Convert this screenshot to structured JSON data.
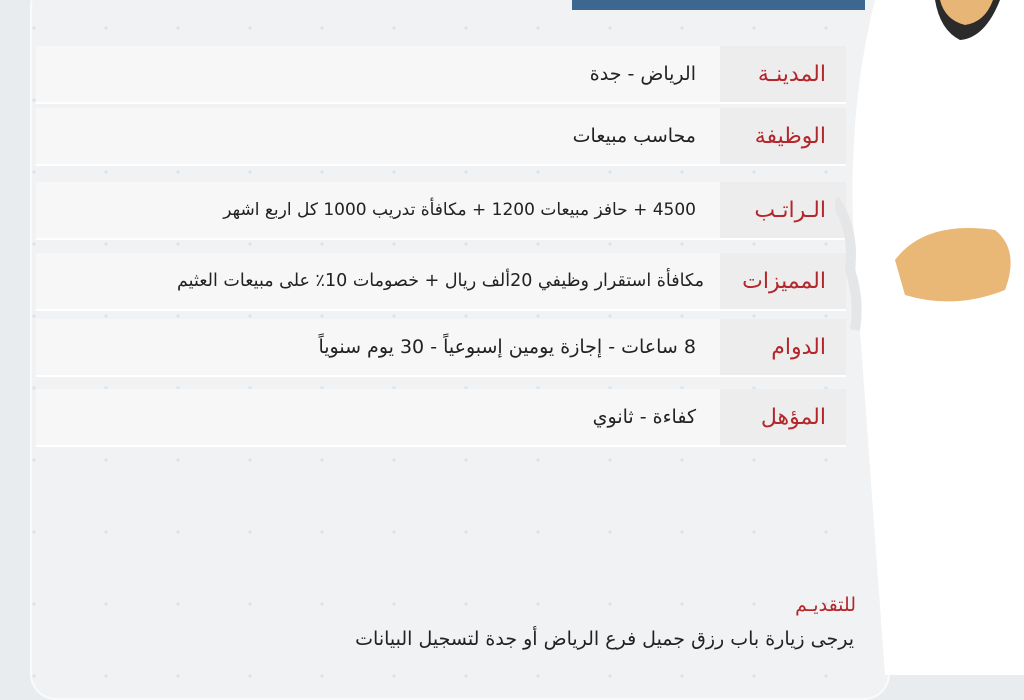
{
  "rows": [
    {
      "label": "المدينـة",
      "value": "الرياض - جدة"
    },
    {
      "label": "الوظيفة",
      "value": "محاسب مبيعات"
    },
    {
      "label": "الـراتـب",
      "value": "4500 + حافز مبيعات 1200 + مكافأة تدريب 1000 كل اربع اشهر"
    },
    {
      "label": "المميزات",
      "value": "مكافأة استقرار وظيفي 20ألف ريال + خصومات 10٪ على مبيعات العثيم"
    },
    {
      "label": "الدوام",
      "value": "8 ساعات - إجازة يومين إسبوعياً - 30 يوم سنوياً"
    },
    {
      "label": "المؤهل",
      "value": "كفاءة - ثانوي"
    }
  ],
  "apply": {
    "title": "للتقديـم",
    "text": "يرجى زيارة باب رزق جميل فرع الرياض أو جدة لتسجيل البيانات"
  },
  "colors": {
    "accent": "#b3262b",
    "bar": "#3b6791"
  }
}
